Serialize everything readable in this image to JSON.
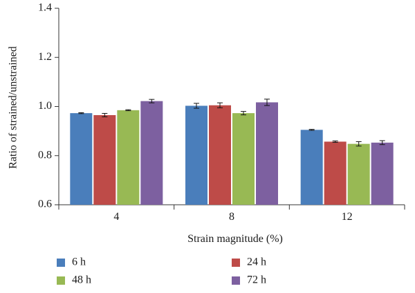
{
  "chart_data": {
    "type": "bar",
    "categories": [
      "4",
      "8",
      "12"
    ],
    "series": [
      {
        "name": "6 h",
        "color": "#4a7ebb",
        "values": [
          0.973,
          1.003,
          0.905
        ],
        "errors": [
          0.002,
          0.01,
          0.002
        ]
      },
      {
        "name": "24 h",
        "color": "#be4b48",
        "values": [
          0.965,
          1.005,
          0.857
        ],
        "errors": [
          0.007,
          0.01,
          0.003
        ]
      },
      {
        "name": "48 h",
        "color": "#98b954",
        "values": [
          0.985,
          0.973,
          0.848
        ],
        "errors": [
          0.002,
          0.007,
          0.009
        ]
      },
      {
        "name": "72 h",
        "color": "#7d60a0",
        "values": [
          1.022,
          1.017,
          0.853
        ],
        "errors": [
          0.007,
          0.013,
          0.008
        ]
      }
    ],
    "xlabel": "Strain magnitude (%)",
    "ylabel": "Ratio of strained/unstrained",
    "ylim": [
      0.6,
      1.4
    ],
    "yticks": [
      "0.6",
      "0.8",
      "1.0",
      "1.2",
      "1.4"
    ],
    "grid": false,
    "legend_position": "bottom",
    "legend_order": [
      0,
      2,
      1,
      3
    ]
  }
}
